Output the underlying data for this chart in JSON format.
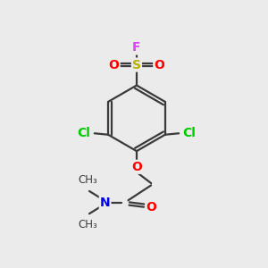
{
  "bg_color": "#ebebeb",
  "bond_color": "#3a3a3a",
  "atom_colors": {
    "F": "#e040fb",
    "S": "#b8b000",
    "O": "#ff0000",
    "Cl": "#00cc00",
    "N": "#0000ee",
    "C": "#3a3a3a"
  },
  "figsize": [
    3.0,
    3.0
  ],
  "dpi": 100
}
